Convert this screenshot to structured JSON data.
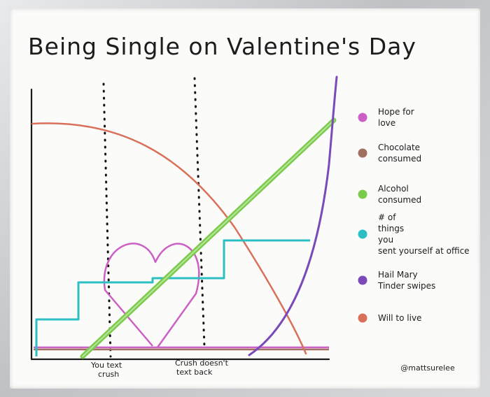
{
  "chart_data": {
    "type": "line",
    "title": "Being Single on Valentine's Day",
    "x_events": [
      {
        "label_line1": "You text",
        "label_line2": "crush"
      },
      {
        "label_line1": "Crush doesn't",
        "label_line2": "text back"
      }
    ],
    "legend_position": "right",
    "series": [
      {
        "name": "Hope for love",
        "color": "#cc5fc4",
        "shape": "heart"
      },
      {
        "name": "Chocolate consumed",
        "color": "#a07060",
        "shape": "flat"
      },
      {
        "name": "Alcohol consumed",
        "color": "#7ccb4e",
        "shape": "linear-rise"
      },
      {
        "name": "# of things you sent yourself at office",
        "color": "#2bbfc4",
        "shape": "staircase"
      },
      {
        "name": "Hail Mary Tinder swipes",
        "color": "#7a4bb8",
        "shape": "exponential"
      },
      {
        "name": "Will to live",
        "color": "#d9705a",
        "shape": "falling-curve"
      }
    ],
    "signature": "@mattsurelee"
  }
}
